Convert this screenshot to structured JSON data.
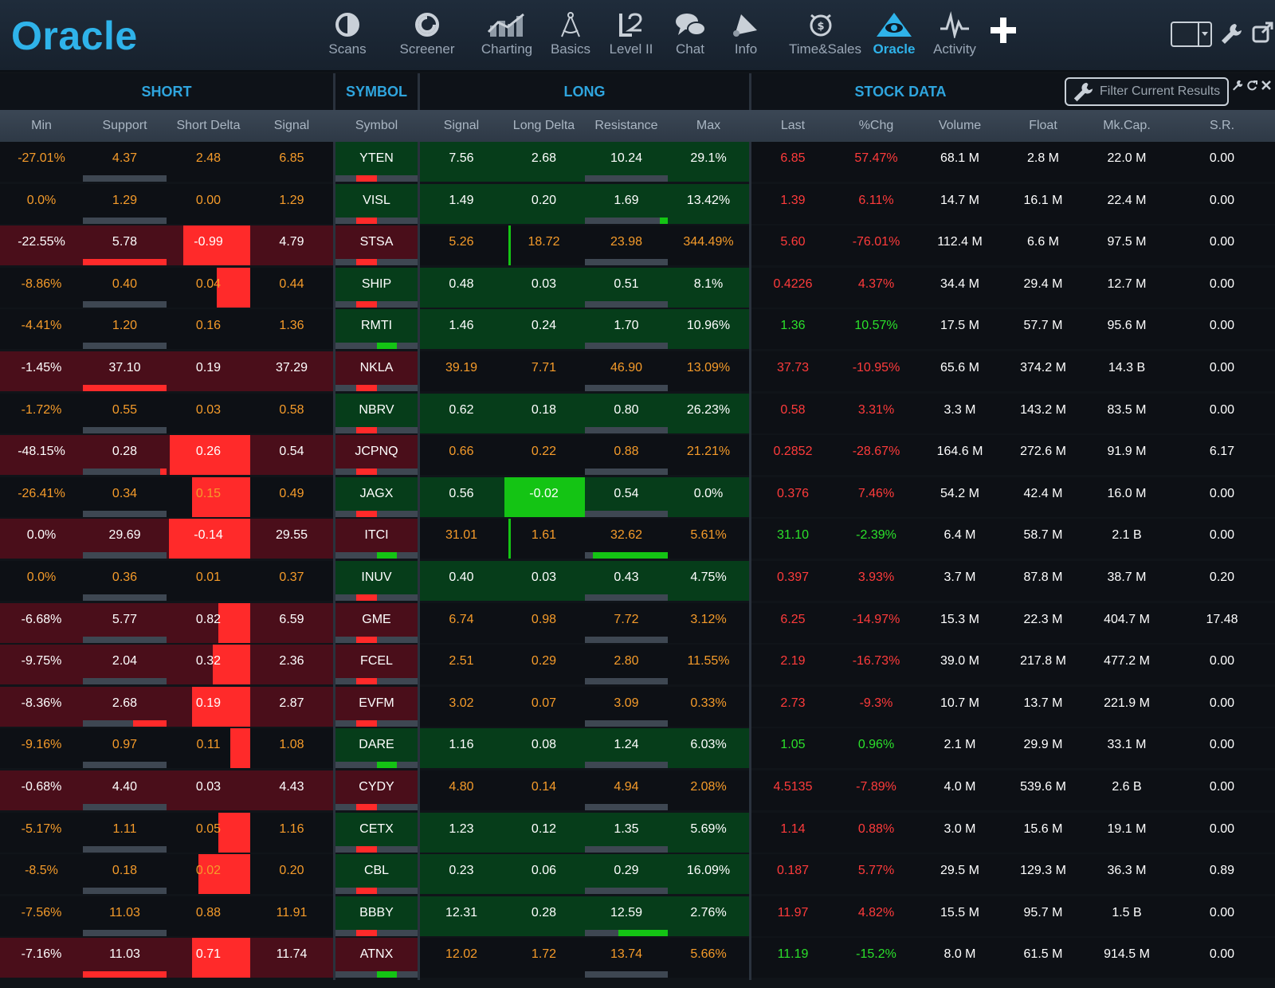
{
  "app": {
    "title": "Oracle"
  },
  "nav": [
    {
      "id": "scans",
      "label": "Scans",
      "icon": "contrast-circle-icon",
      "active": false
    },
    {
      "id": "screener",
      "label": "Screener",
      "icon": "screener-dial-icon",
      "active": false
    },
    {
      "id": "charting",
      "label": "Charting",
      "icon": "chart-bars-icon",
      "active": false
    },
    {
      "id": "basics",
      "label": "Basics",
      "icon": "compass-icon",
      "active": false
    },
    {
      "id": "level2",
      "label": "Level II",
      "icon": "level2-icon",
      "active": false
    },
    {
      "id": "chat",
      "label": "Chat",
      "icon": "chat-bubbles-icon",
      "active": false
    },
    {
      "id": "info",
      "label": "Info",
      "icon": "bell-icon",
      "active": false
    },
    {
      "id": "timesales",
      "label": "Time&Sales",
      "icon": "alarm-clock-icon",
      "active": false
    },
    {
      "id": "oracle",
      "label": "Oracle",
      "icon": "eye-pyramid-icon",
      "active": true
    },
    {
      "id": "activity",
      "label": "Activity",
      "icon": "pulse-icon",
      "active": false
    }
  ],
  "toolbar": {
    "plus_icon": "plus-icon",
    "layout_icon": "layout-toggle-icon",
    "wrench_icon": "wrench-icon",
    "popout_icon": "popout-icon"
  },
  "sections": {
    "short": "SHORT",
    "symbol": "SYMBOL",
    "long": "LONG",
    "stock_data": "STOCK DATA"
  },
  "filter": {
    "label": "Filter Current Results"
  },
  "columns": [
    "Min",
    "Support",
    "Short Delta",
    "Signal",
    "Symbol",
    "Signal",
    "Long Delta",
    "Resistance",
    "Max",
    "Last",
    "%Chg",
    "Volume",
    "Float",
    "Mk.Cap.",
    "S.R."
  ],
  "colors": {
    "orange": "#f59b2a",
    "white": "#ffffff",
    "red": "#ff3b3b",
    "green": "#2be02b",
    "bg_dark": "#0d1015",
    "bg_red": "#4a0e1a",
    "bg_green": "#063d1a",
    "bar_red": "#ff2a2a",
    "bar_green": "#14c414",
    "accent": "#2fb3ea"
  },
  "rows": [
    {
      "min": "-27.01%",
      "support": "4.37",
      "short_delta": "2.48",
      "short_signal": "6.85",
      "symbol": "YTEN",
      "long_signal": "7.56",
      "long_delta": "2.68",
      "resistance": "10.24",
      "max": "29.1%",
      "last": "6.85",
      "chg": "57.47%",
      "volume": "68.1 M",
      "float": "2.8 M",
      "mkcap": "22.0 M",
      "sr": "0.00",
      "tone": "long"
    },
    {
      "min": "0.0%",
      "support": "1.29",
      "short_delta": "0.00",
      "short_signal": "1.29",
      "symbol": "VISL",
      "long_signal": "1.49",
      "long_delta": "0.20",
      "resistance": "1.69",
      "max": "13.42%",
      "last": "1.39",
      "chg": "6.11%",
      "volume": "14.7 M",
      "float": "16.1 M",
      "mkcap": "22.4 M",
      "sr": "0.00",
      "tone": "long"
    },
    {
      "min": "-22.55%",
      "support": "5.78",
      "short_delta": "-0.99",
      "short_signal": "4.79",
      "symbol": "STSA",
      "long_signal": "5.26",
      "long_delta": "18.72",
      "resistance": "23.98",
      "max": "344.49%",
      "last": "5.60",
      "chg": "-76.01%",
      "volume": "112.4 M",
      "float": "6.6 M",
      "mkcap": "97.5 M",
      "sr": "0.00",
      "tone": "short"
    },
    {
      "min": "-8.86%",
      "support": "0.40",
      "short_delta": "0.04",
      "short_signal": "0.44",
      "symbol": "SHIP",
      "long_signal": "0.48",
      "long_delta": "0.03",
      "resistance": "0.51",
      "max": "8.1%",
      "last": "0.4226",
      "chg": "4.37%",
      "volume": "34.4 M",
      "float": "29.4 M",
      "mkcap": "12.7 M",
      "sr": "0.00",
      "tone": "long"
    },
    {
      "min": "-4.41%",
      "support": "1.20",
      "short_delta": "0.16",
      "short_signal": "1.36",
      "symbol": "RMTI",
      "long_signal": "1.46",
      "long_delta": "0.24",
      "resistance": "1.70",
      "max": "10.96%",
      "last": "1.36",
      "chg": "10.57%",
      "volume": "17.5 M",
      "float": "57.7 M",
      "mkcap": "95.6 M",
      "sr": "0.00",
      "tone": "long"
    },
    {
      "min": "-1.45%",
      "support": "37.10",
      "short_delta": "0.19",
      "short_signal": "37.29",
      "symbol": "NKLA",
      "long_signal": "39.19",
      "long_delta": "7.71",
      "resistance": "46.90",
      "max": "13.09%",
      "last": "37.73",
      "chg": "-10.95%",
      "volume": "65.6 M",
      "float": "374.2 M",
      "mkcap": "14.3 B",
      "sr": "0.00",
      "tone": "short"
    },
    {
      "min": "-1.72%",
      "support": "0.55",
      "short_delta": "0.03",
      "short_signal": "0.58",
      "symbol": "NBRV",
      "long_signal": "0.62",
      "long_delta": "0.18",
      "resistance": "0.80",
      "max": "26.23%",
      "last": "0.58",
      "chg": "3.31%",
      "volume": "3.3 M",
      "float": "143.2 M",
      "mkcap": "83.5 M",
      "sr": "0.00",
      "tone": "long"
    },
    {
      "min": "-48.15%",
      "support": "0.28",
      "short_delta": "0.26",
      "short_signal": "0.54",
      "symbol": "JCPNQ",
      "long_signal": "0.66",
      "long_delta": "0.22",
      "resistance": "0.88",
      "max": "21.21%",
      "last": "0.2852",
      "chg": "-28.67%",
      "volume": "164.6 M",
      "float": "272.6 M",
      "mkcap": "91.9 M",
      "sr": "6.17",
      "tone": "short"
    },
    {
      "min": "-26.41%",
      "support": "0.34",
      "short_delta": "0.15",
      "short_signal": "0.49",
      "symbol": "JAGX",
      "long_signal": "0.56",
      "long_delta": "-0.02",
      "resistance": "0.54",
      "max": "0.0%",
      "last": "0.376",
      "chg": "7.46%",
      "volume": "54.2 M",
      "float": "42.4 M",
      "mkcap": "16.0 M",
      "sr": "0.00",
      "tone": "long"
    },
    {
      "min": "0.0%",
      "support": "29.69",
      "short_delta": "-0.14",
      "short_signal": "29.55",
      "symbol": "ITCI",
      "long_signal": "31.01",
      "long_delta": "1.61",
      "resistance": "32.62",
      "max": "5.61%",
      "last": "31.10",
      "chg": "-2.39%",
      "volume": "6.4 M",
      "float": "58.7 M",
      "mkcap": "2.1 B",
      "sr": "0.00",
      "tone": "short"
    },
    {
      "min": "0.0%",
      "support": "0.36",
      "short_delta": "0.01",
      "short_signal": "0.37",
      "symbol": "INUV",
      "long_signal": "0.40",
      "long_delta": "0.03",
      "resistance": "0.43",
      "max": "4.75%",
      "last": "0.397",
      "chg": "3.93%",
      "volume": "3.7 M",
      "float": "87.8 M",
      "mkcap": "38.7 M",
      "sr": "0.20",
      "tone": "long"
    },
    {
      "min": "-6.68%",
      "support": "5.77",
      "short_delta": "0.82",
      "short_signal": "6.59",
      "symbol": "GME",
      "long_signal": "6.74",
      "long_delta": "0.98",
      "resistance": "7.72",
      "max": "3.12%",
      "last": "6.25",
      "chg": "-14.97%",
      "volume": "15.3 M",
      "float": "22.3 M",
      "mkcap": "404.7 M",
      "sr": "17.48",
      "tone": "short"
    },
    {
      "min": "-9.75%",
      "support": "2.04",
      "short_delta": "0.32",
      "short_signal": "2.36",
      "symbol": "FCEL",
      "long_signal": "2.51",
      "long_delta": "0.29",
      "resistance": "2.80",
      "max": "11.55%",
      "last": "2.19",
      "chg": "-16.73%",
      "volume": "39.0 M",
      "float": "217.8 M",
      "mkcap": "477.2 M",
      "sr": "0.00",
      "tone": "short"
    },
    {
      "min": "-8.36%",
      "support": "2.68",
      "short_delta": "0.19",
      "short_signal": "2.87",
      "symbol": "EVFM",
      "long_signal": "3.02",
      "long_delta": "0.07",
      "resistance": "3.09",
      "max": "0.33%",
      "last": "2.73",
      "chg": "-9.3%",
      "volume": "10.7 M",
      "float": "13.7 M",
      "mkcap": "221.9 M",
      "sr": "0.00",
      "tone": "short"
    },
    {
      "min": "-9.16%",
      "support": "0.97",
      "short_delta": "0.11",
      "short_signal": "1.08",
      "symbol": "DARE",
      "long_signal": "1.16",
      "long_delta": "0.08",
      "resistance": "1.24",
      "max": "6.03%",
      "last": "1.05",
      "chg": "0.96%",
      "volume": "2.1 M",
      "float": "29.9 M",
      "mkcap": "33.1 M",
      "sr": "0.00",
      "tone": "long"
    },
    {
      "min": "-0.68%",
      "support": "4.40",
      "short_delta": "0.03",
      "short_signal": "4.43",
      "symbol": "CYDY",
      "long_signal": "4.80",
      "long_delta": "0.14",
      "resistance": "4.94",
      "max": "2.08%",
      "last": "4.5135",
      "chg": "-7.89%",
      "volume": "4.0 M",
      "float": "539.6 M",
      "mkcap": "2.6 B",
      "sr": "0.00",
      "tone": "short"
    },
    {
      "min": "-5.17%",
      "support": "1.11",
      "short_delta": "0.05",
      "short_signal": "1.16",
      "symbol": "CETX",
      "long_signal": "1.23",
      "long_delta": "0.12",
      "resistance": "1.35",
      "max": "5.69%",
      "last": "1.14",
      "chg": "0.88%",
      "volume": "3.0 M",
      "float": "15.6 M",
      "mkcap": "19.1 M",
      "sr": "0.00",
      "tone": "long"
    },
    {
      "min": "-8.5%",
      "support": "0.18",
      "short_delta": "0.02",
      "short_signal": "0.20",
      "symbol": "CBL",
      "long_signal": "0.23",
      "long_delta": "0.06",
      "resistance": "0.29",
      "max": "16.09%",
      "last": "0.187",
      "chg": "5.77%",
      "volume": "29.5 M",
      "float": "129.3 M",
      "mkcap": "36.3 M",
      "sr": "0.89",
      "tone": "long"
    },
    {
      "min": "-7.56%",
      "support": "11.03",
      "short_delta": "0.88",
      "short_signal": "11.91",
      "symbol": "BBBY",
      "long_signal": "12.31",
      "long_delta": "0.28",
      "resistance": "12.59",
      "max": "2.76%",
      "last": "11.97",
      "chg": "4.82%",
      "volume": "15.5 M",
      "float": "95.7 M",
      "mkcap": "1.5 B",
      "sr": "0.00",
      "tone": "long"
    },
    {
      "min": "-7.16%",
      "support": "11.03",
      "short_delta": "0.71",
      "short_signal": "11.74",
      "symbol": "ATNX",
      "long_signal": "12.02",
      "long_delta": "1.72",
      "resistance": "13.74",
      "max": "5.66%",
      "last": "11.19",
      "chg": "-15.2%",
      "volume": "8.0 M",
      "float": "61.5 M",
      "mkcap": "914.5 M",
      "sr": "0.00",
      "tone": "short"
    }
  ]
}
